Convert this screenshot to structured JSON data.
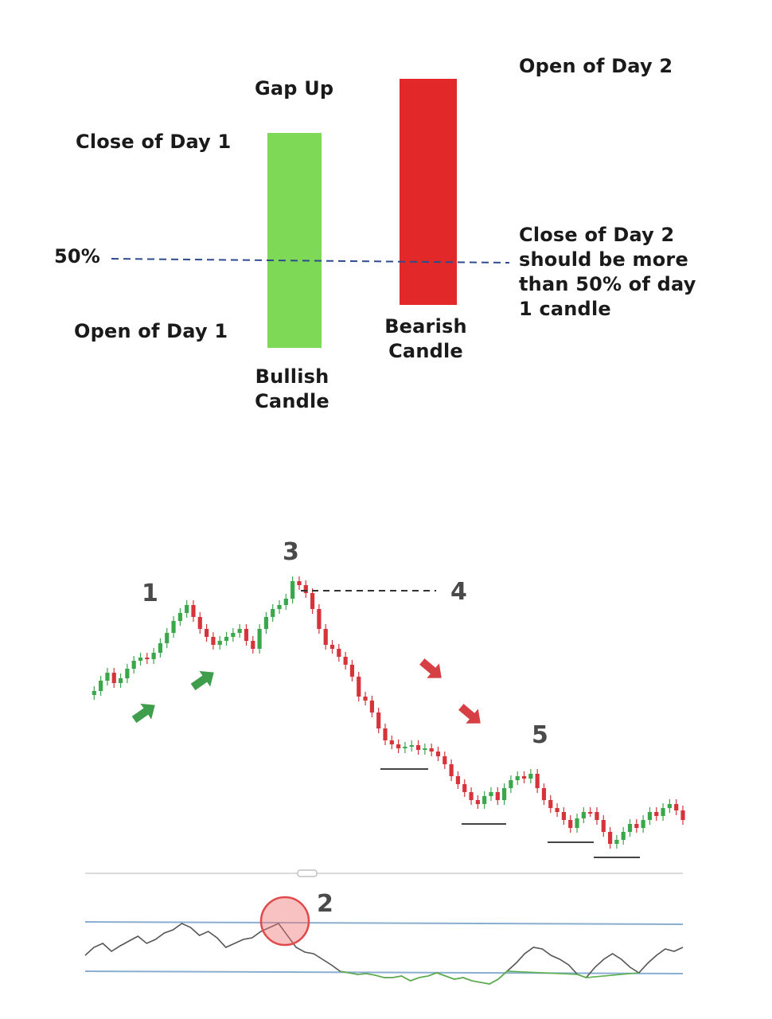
{
  "pattern_diagram": {
    "labels": {
      "gap_up": "Gap Up",
      "open_day2": "Open of Day 2",
      "close_day1": "Close of Day 1",
      "fifty_percent": "50%",
      "close_day2_rule": [
        "Close of Day 2",
        "should be more",
        "than 50% of day",
        "1 candle"
      ],
      "open_day1": "Open of Day 1",
      "bearish_candle": [
        "Bearish",
        "Candle"
      ],
      "bullish_candle": [
        "Bullish",
        "Candle"
      ]
    },
    "colors": {
      "bullish": "#7ed957",
      "bearish": "#e3282a",
      "midline": "#2f4b8f"
    }
  },
  "example_chart": {
    "markers": {
      "m1": "1",
      "m2": "2",
      "m3": "3",
      "m4": "4",
      "m5": "5"
    },
    "colors": {
      "up": "#3aa84a",
      "down": "#d6343a",
      "arrow_up": "#3e9e4c",
      "arrow_down": "#d64044",
      "rsi_line": "#555555",
      "rsi_oversold": "#5ab04a",
      "rsi_band": "#8aaed0",
      "rsi_highlight": "#e04a4a"
    },
    "price_path": [
      873,
      868,
      855,
      845,
      858,
      852,
      840,
      830,
      826,
      828,
      820,
      808,
      795,
      780,
      770,
      760,
      775,
      790,
      800,
      810,
      805,
      800,
      795,
      790,
      805,
      815,
      790,
      775,
      765,
      760,
      752,
      730,
      735,
      745,
      765,
      790,
      810,
      815,
      825,
      835,
      850,
      875,
      880,
      895,
      915,
      930,
      935,
      940,
      938,
      936,
      942,
      940,
      944,
      950,
      960,
      975,
      985,
      995,
      1005,
      1010,
      1000,
      995,
      1005,
      990,
      980,
      975,
      978,
      972,
      990,
      1005,
      1015,
      1020,
      1030,
      1040,
      1028,
      1020,
      1020,
      1030,
      1045,
      1060,
      1055,
      1045,
      1035,
      1040,
      1030,
      1020,
      1025,
      1015,
      1010,
      1018,
      1030
    ],
    "rsi_path": [
      1200,
      1190,
      1185,
      1195,
      1188,
      1182,
      1176,
      1185,
      1180,
      1172,
      1168,
      1160,
      1165,
      1175,
      1170,
      1178,
      1190,
      1185,
      1180,
      1178,
      1170,
      1165,
      1160,
      1175,
      1190,
      1196,
      1198,
      1205,
      1212,
      1220,
      1222,
      1224,
      1223,
      1225,
      1228,
      1228,
      1226,
      1232,
      1228,
      1226,
      1222,
      1226,
      1230,
      1228,
      1232,
      1234,
      1236,
      1230,
      1220,
      1210,
      1198,
      1190,
      1192,
      1200,
      1205,
      1212,
      1224,
      1228,
      1215,
      1205,
      1198,
      1205,
      1215,
      1222,
      1210,
      1200,
      1192,
      1195,
      1190
    ]
  }
}
